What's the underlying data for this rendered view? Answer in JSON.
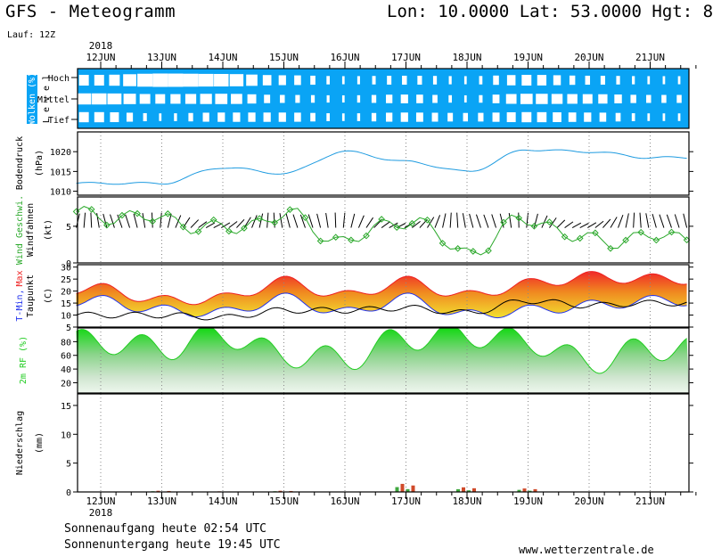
{
  "header": {
    "title": "GFS - Meteogramm",
    "coords": "Lon: 10.0000 Lat: 53.0000 Hgt: 8",
    "run": "Lauf: 12Z"
  },
  "year": "2018",
  "dates": [
    "12JUN",
    "13JUN",
    "14JUN",
    "15JUN",
    "16JUN",
    "17JUN",
    "18JUN",
    "19JUN",
    "20JUN",
    "21JUN"
  ],
  "footer": {
    "sunrise": "Sonnenaufgang heute 02:54 UTC",
    "sunset": "Sonnenuntergang heute 19:45 UTC",
    "website": "www.wetterzentrale.de"
  },
  "panels": {
    "clouds": {
      "label": "Wolken (%)",
      "level_label": "L e v e l",
      "levels": [
        "Hoch",
        "Mittel",
        "Tief"
      ]
    },
    "pressure": {
      "label": "Bodendruck",
      "unit": "(hPa)"
    },
    "wind": {
      "label": "Wind Geschwi.",
      "label2": "Windfahnen",
      "unit": "(kt)"
    },
    "temp": {
      "label_tmin": "T-Min,",
      "label_max": "Max",
      "label_dew": "Taupunkt",
      "unit": "(C)"
    },
    "rh": {
      "label": "2m RF (%)"
    },
    "precip": {
      "label": "Niederschlag",
      "unit": "(mm)"
    }
  },
  "colors": {
    "cloud_bg": "#0aa4f5",
    "pressure_line": "#1e9be0",
    "wind_line": "#2aa82a",
    "rh_fill": "#22cc22",
    "tmin": "#2233ee",
    "tmax": "#ee2222",
    "precip_green": "#3fa83f",
    "precip_red": "#d04a2a"
  },
  "chart_data": [
    {
      "type": "area",
      "title": "Wolken (%)",
      "x": [
        "12JUN",
        "13JUN",
        "14JUN",
        "15JUN",
        "16JUN",
        "17JUN",
        "18JUN",
        "19JUN",
        "20JUN",
        "21JUN"
      ],
      "series": [
        {
          "name": "Hoch",
          "values": [
            60,
            30,
            40,
            70,
            90,
            80,
            90,
            60,
            80,
            90
          ]
        },
        {
          "name": "Mittel",
          "values": [
            40,
            60,
            50,
            80,
            90,
            70,
            90,
            50,
            60,
            80
          ]
        },
        {
          "name": "Tief",
          "values": [
            60,
            90,
            70,
            70,
            90,
            70,
            80,
            60,
            70,
            90
          ]
        }
      ]
    },
    {
      "type": "line",
      "title": "Bodendruck",
      "ylabel": "(hPa)",
      "ylim": [
        1009,
        1025
      ],
      "yticks": [
        1010,
        1015,
        1020
      ],
      "x": [
        "12JUN",
        "13JUN",
        "14JUN",
        "15JUN",
        "16JUN",
        "17JUN",
        "18JUN",
        "19JUN",
        "20JUN",
        "21JUN"
      ],
      "values": [
        1012.0,
        1012.0,
        1016.0,
        1014.5,
        1020.0,
        1017.5,
        1015.0,
        1020.5,
        1020.0,
        1018.5
      ]
    },
    {
      "type": "line",
      "title": "Wind Geschwi.",
      "ylabel": "(kt)",
      "ylim": [
        0,
        9
      ],
      "yticks": [
        0,
        5
      ],
      "x": [
        "12JUN",
        "13JUN",
        "14JUN",
        "15JUN",
        "16JUN",
        "17JUN",
        "18JUN",
        "19JUN",
        "20JUN",
        "21JUN"
      ],
      "values": [
        6.5,
        6.0,
        4.5,
        6.5,
        3.0,
        6.0,
        1.5,
        6.0,
        3.0,
        3.5
      ]
    },
    {
      "type": "area",
      "title": "T-Min, Max / Taupunkt",
      "ylabel": "(C)",
      "ylim": [
        5,
        31
      ],
      "yticks": [
        5,
        10,
        15,
        20,
        25,
        30
      ],
      "x": [
        "12JUN",
        "13JUN",
        "14JUN",
        "15JUN",
        "16JUN",
        "17JUN",
        "18JUN",
        "19JUN",
        "20JUN",
        "21JUN"
      ],
      "series": [
        {
          "name": "T-Min",
          "values": [
            19,
            15,
            14,
            20,
            14,
            20,
            13,
            15,
            17,
            19
          ]
        },
        {
          "name": "Max",
          "values": [
            21,
            16,
            17,
            24,
            18,
            24,
            18,
            23,
            26,
            25
          ]
        },
        {
          "name": "Taupunkt",
          "values": [
            10,
            10,
            9,
            12,
            12,
            13,
            11,
            16,
            14,
            15
          ]
        }
      ]
    },
    {
      "type": "area",
      "title": "2m RF (%)",
      "ylim": [
        5,
        100
      ],
      "yticks": [
        20,
        40,
        60,
        80
      ],
      "x": [
        "12JUN",
        "13JUN",
        "14JUN",
        "15JUN",
        "16JUN",
        "17JUN",
        "18JUN",
        "19JUN",
        "20JUN",
        "21JUN"
      ],
      "values": [
        80,
        70,
        90,
        60,
        55,
        85,
        90,
        80,
        50,
        70
      ]
    },
    {
      "type": "bar",
      "title": "Niederschlag",
      "ylabel": "(mm)",
      "ylim": [
        0,
        17
      ],
      "yticks": [
        0,
        5,
        10,
        15
      ],
      "categories": [
        "12JUN",
        "13JUN",
        "14JUN",
        "15JUN",
        "16JUN",
        "17JUN",
        "18JUN",
        "19JUN",
        "20JUN",
        "21JUN"
      ],
      "values": [
        0,
        0.2,
        0.1,
        0.2,
        0,
        1.4,
        0.8,
        0.6,
        0,
        0
      ]
    }
  ]
}
